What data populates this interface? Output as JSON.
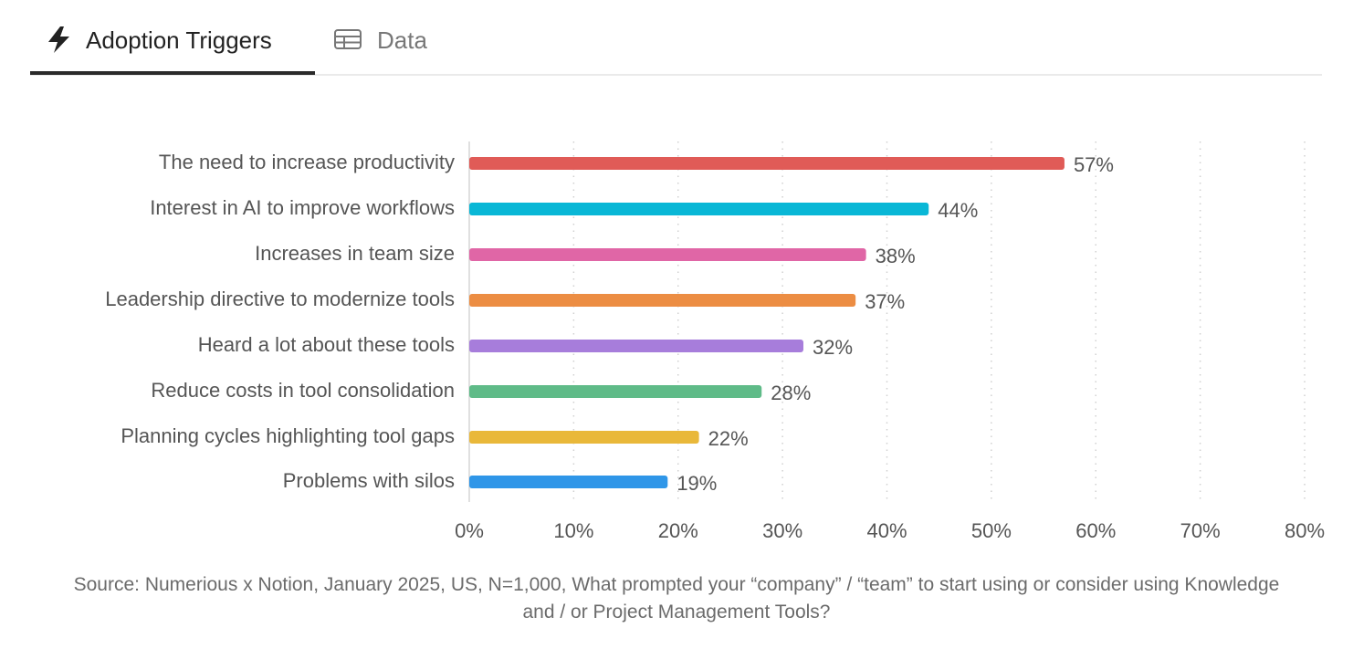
{
  "tabs": [
    "Adoption Triggers",
    "Data"
  ],
  "chart_data": {
    "type": "hbar",
    "categories": [
      "The need to increase productivity",
      "Interest in AI to improve workflows",
      "Increases in team size",
      "Leadership directive to modernize tools",
      "Heard a lot about these tools",
      "Reduce costs in tool consolidation",
      "Planning cycles highlighting tool gaps",
      "Problems with silos"
    ],
    "values": [
      57,
      44,
      38,
      37,
      32,
      28,
      22,
      19
    ],
    "value_labels": [
      "57%",
      "44%",
      "38%",
      "37%",
      "32%",
      "28%",
      "22%",
      "19%"
    ],
    "colors": [
      "#e05b57",
      "#09b7d6",
      "#e066a6",
      "#ec8d43",
      "#a77ddb",
      "#5fbb88",
      "#e9b83a",
      "#2f96e8"
    ],
    "xlim": [
      0,
      80
    ],
    "xticks": [
      {
        "value": 0,
        "label": "0%"
      },
      {
        "value": 10,
        "label": "10%"
      },
      {
        "value": 20,
        "label": "20%"
      },
      {
        "value": 30,
        "label": "30%"
      },
      {
        "value": 40,
        "label": "40%"
      },
      {
        "value": 50,
        "label": "50%"
      },
      {
        "value": 60,
        "label": "60%"
      },
      {
        "value": 70,
        "label": "70%"
      },
      {
        "value": 80,
        "label": "80%"
      }
    ],
    "grid": true,
    "source": "Source: Numerious x Notion, January 2025, US, N=1,000, What prompted your “company” / “team” to start using or consider using Knowledge and / or Project Management Tools?"
  }
}
